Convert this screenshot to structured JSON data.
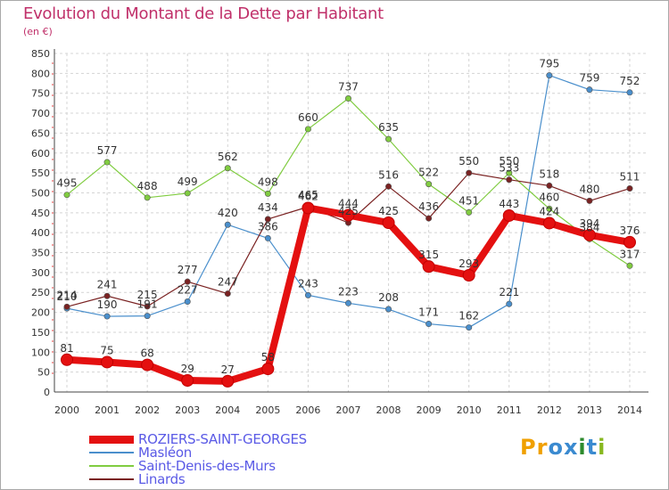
{
  "title": "Evolution du Montant de la Dette par Habitant",
  "subtitle": "(en €)",
  "logo": {
    "text": "Proxiti",
    "letters": [
      "P",
      "r",
      "o",
      "x",
      "i",
      "t",
      "i"
    ],
    "colors": [
      "#f0a000",
      "#f0a000",
      "#3a8ad0",
      "#3a8ad0",
      "#2c8a2c",
      "#3a8ad0",
      "#88b820"
    ]
  },
  "chart_data": {
    "type": "line",
    "x": [
      "2000",
      "2001",
      "2002",
      "2003",
      "2004",
      "2005",
      "2006",
      "2007",
      "2008",
      "2009",
      "2010",
      "2011",
      "2012",
      "2013",
      "2014"
    ],
    "ylim": [
      0,
      850
    ],
    "yticks": [
      0,
      50,
      100,
      150,
      200,
      250,
      300,
      350,
      400,
      450,
      500,
      550,
      600,
      650,
      700,
      750,
      800,
      850
    ],
    "grid": true,
    "legend_position": "bottom-left",
    "series": [
      {
        "name": "ROZIERS-SAINT-GEORGES",
        "color": "#e41010",
        "values": [
          81,
          75,
          68,
          29,
          27,
          58,
          462,
          444,
          425,
          315,
          293,
          443,
          424,
          394,
          376
        ]
      },
      {
        "name": "Masléon",
        "color": "#4a8fcc",
        "values": [
          210,
          190,
          191,
          227,
          420,
          386,
          243,
          223,
          208,
          171,
          162,
          221,
          795,
          759,
          752
        ]
      },
      {
        "name": "Saint-Denis-des-Murs",
        "color": "#80cc40",
        "values": [
          495,
          577,
          488,
          499,
          562,
          498,
          660,
          737,
          635,
          522,
          451,
          550,
          460,
          384,
          317
        ]
      },
      {
        "name": "Linards",
        "color": "#7a2222",
        "values": [
          214,
          241,
          215,
          277,
          247,
          434,
          465,
          425,
          516,
          436,
          550,
          533,
          518,
          480,
          511
        ]
      }
    ]
  }
}
